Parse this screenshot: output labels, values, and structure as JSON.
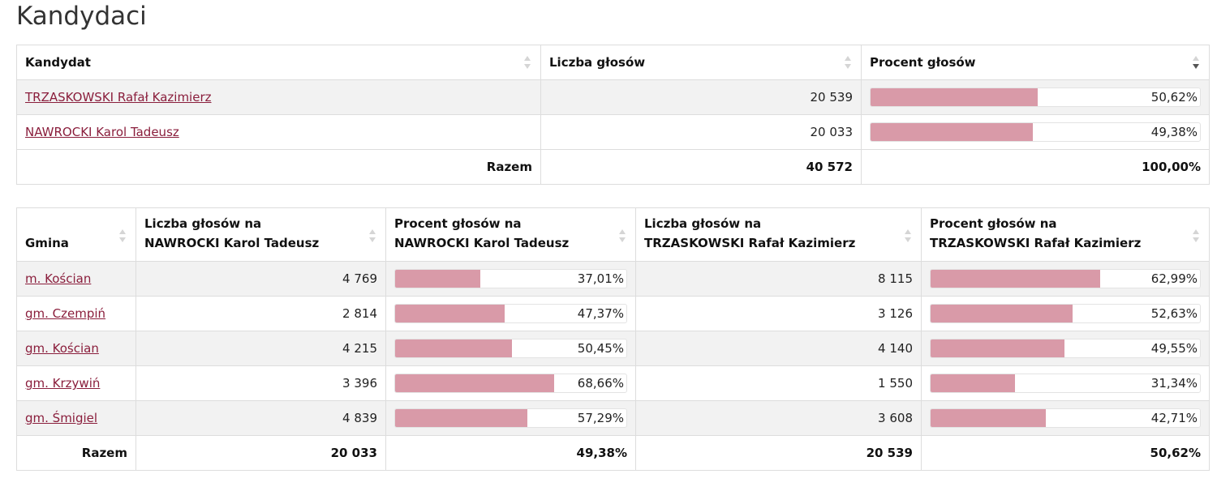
{
  "page": {
    "title": "Kandydaci"
  },
  "candidates_table": {
    "headers": {
      "candidate": "Kandydat",
      "votes": "Liczba głosów",
      "percent": "Procent głosów"
    },
    "rows": [
      {
        "name": "TRZASKOWSKI Rafał Kazimierz",
        "votes": "20 539",
        "percent": "50,62%",
        "share": 0.5062
      },
      {
        "name": "NAWROCKI Karol Tadeusz",
        "votes": "20 033",
        "percent": "49,38%",
        "share": 0.4938
      }
    ],
    "footer": {
      "label": "Razem",
      "votes": "40 572",
      "percent": "100,00%"
    }
  },
  "gmina_table": {
    "headers": {
      "gmina": "Gmina",
      "votes_a_line1": "Liczba głosów na",
      "votes_a_line2": "NAWROCKI Karol Tadeusz",
      "pct_a_line1": "Procent głosów na",
      "pct_a_line2": "NAWROCKI Karol Tadeusz",
      "votes_b_line1": "Liczba głosów na",
      "votes_b_line2": "TRZASKOWSKI Rafał Kazimierz",
      "pct_b_line1": "Procent głosów na",
      "pct_b_line2": "TRZASKOWSKI Rafał Kazimierz"
    },
    "rows": [
      {
        "gmina": "m. Kościan",
        "votes_a": "4 769",
        "pct_a": "37,01%",
        "share_a": 0.3701,
        "votes_b": "8 115",
        "pct_b": "62,99%",
        "share_b": 0.6299
      },
      {
        "gmina": "gm. Czempiń",
        "votes_a": "2 814",
        "pct_a": "47,37%",
        "share_a": 0.4737,
        "votes_b": "3 126",
        "pct_b": "52,63%",
        "share_b": 0.5263
      },
      {
        "gmina": "gm. Kościan",
        "votes_a": "4 215",
        "pct_a": "50,45%",
        "share_a": 0.5045,
        "votes_b": "4 140",
        "pct_b": "49,55%",
        "share_b": 0.4955
      },
      {
        "gmina": "gm. Krzywiń",
        "votes_a": "3 396",
        "pct_a": "68,66%",
        "share_a": 0.6866,
        "votes_b": "1 550",
        "pct_b": "31,34%",
        "share_b": 0.3134
      },
      {
        "gmina": "gm. Śmigiel",
        "votes_a": "4 839",
        "pct_a": "57,29%",
        "share_a": 0.5729,
        "votes_b": "3 608",
        "pct_b": "42,71%",
        "share_b": 0.4271
      }
    ],
    "footer": {
      "label": "Razem",
      "votes_a": "20 033",
      "pct_a": "49,38%",
      "votes_b": "20 539",
      "pct_b": "50,62%"
    }
  },
  "colors": {
    "bar_fill": "#d99aa8",
    "link": "#8a1e3c"
  },
  "icons": {
    "sort": "sort-icon",
    "sort_desc": "sort-desc-icon"
  }
}
